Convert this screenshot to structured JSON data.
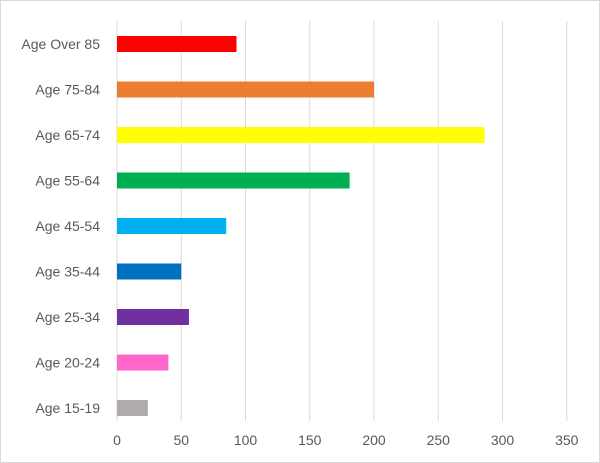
{
  "chart_data": {
    "type": "bar",
    "orientation": "horizontal",
    "categories": [
      "Age Over 85",
      "Age 75-84",
      "Age 65-74",
      "Age 55-64",
      "Age 45-54",
      "Age 35-44",
      "Age 25-34",
      "Age 20-24",
      "Age 15-19"
    ],
    "values": [
      93,
      200,
      286,
      181,
      85,
      50,
      56,
      40,
      24
    ],
    "colors": [
      "#ff0000",
      "#ed7d31",
      "#ffff00",
      "#00b050",
      "#00b0f0",
      "#0070c0",
      "#7030a0",
      "#ff66cc",
      "#b0aaaa"
    ],
    "title": "",
    "xlabel": "",
    "ylabel": "",
    "xlim": [
      0,
      350
    ],
    "xticks": [
      "0",
      "50",
      "100",
      "150",
      "200",
      "250",
      "300",
      "350"
    ],
    "grid": "vertical",
    "legend": "none"
  }
}
